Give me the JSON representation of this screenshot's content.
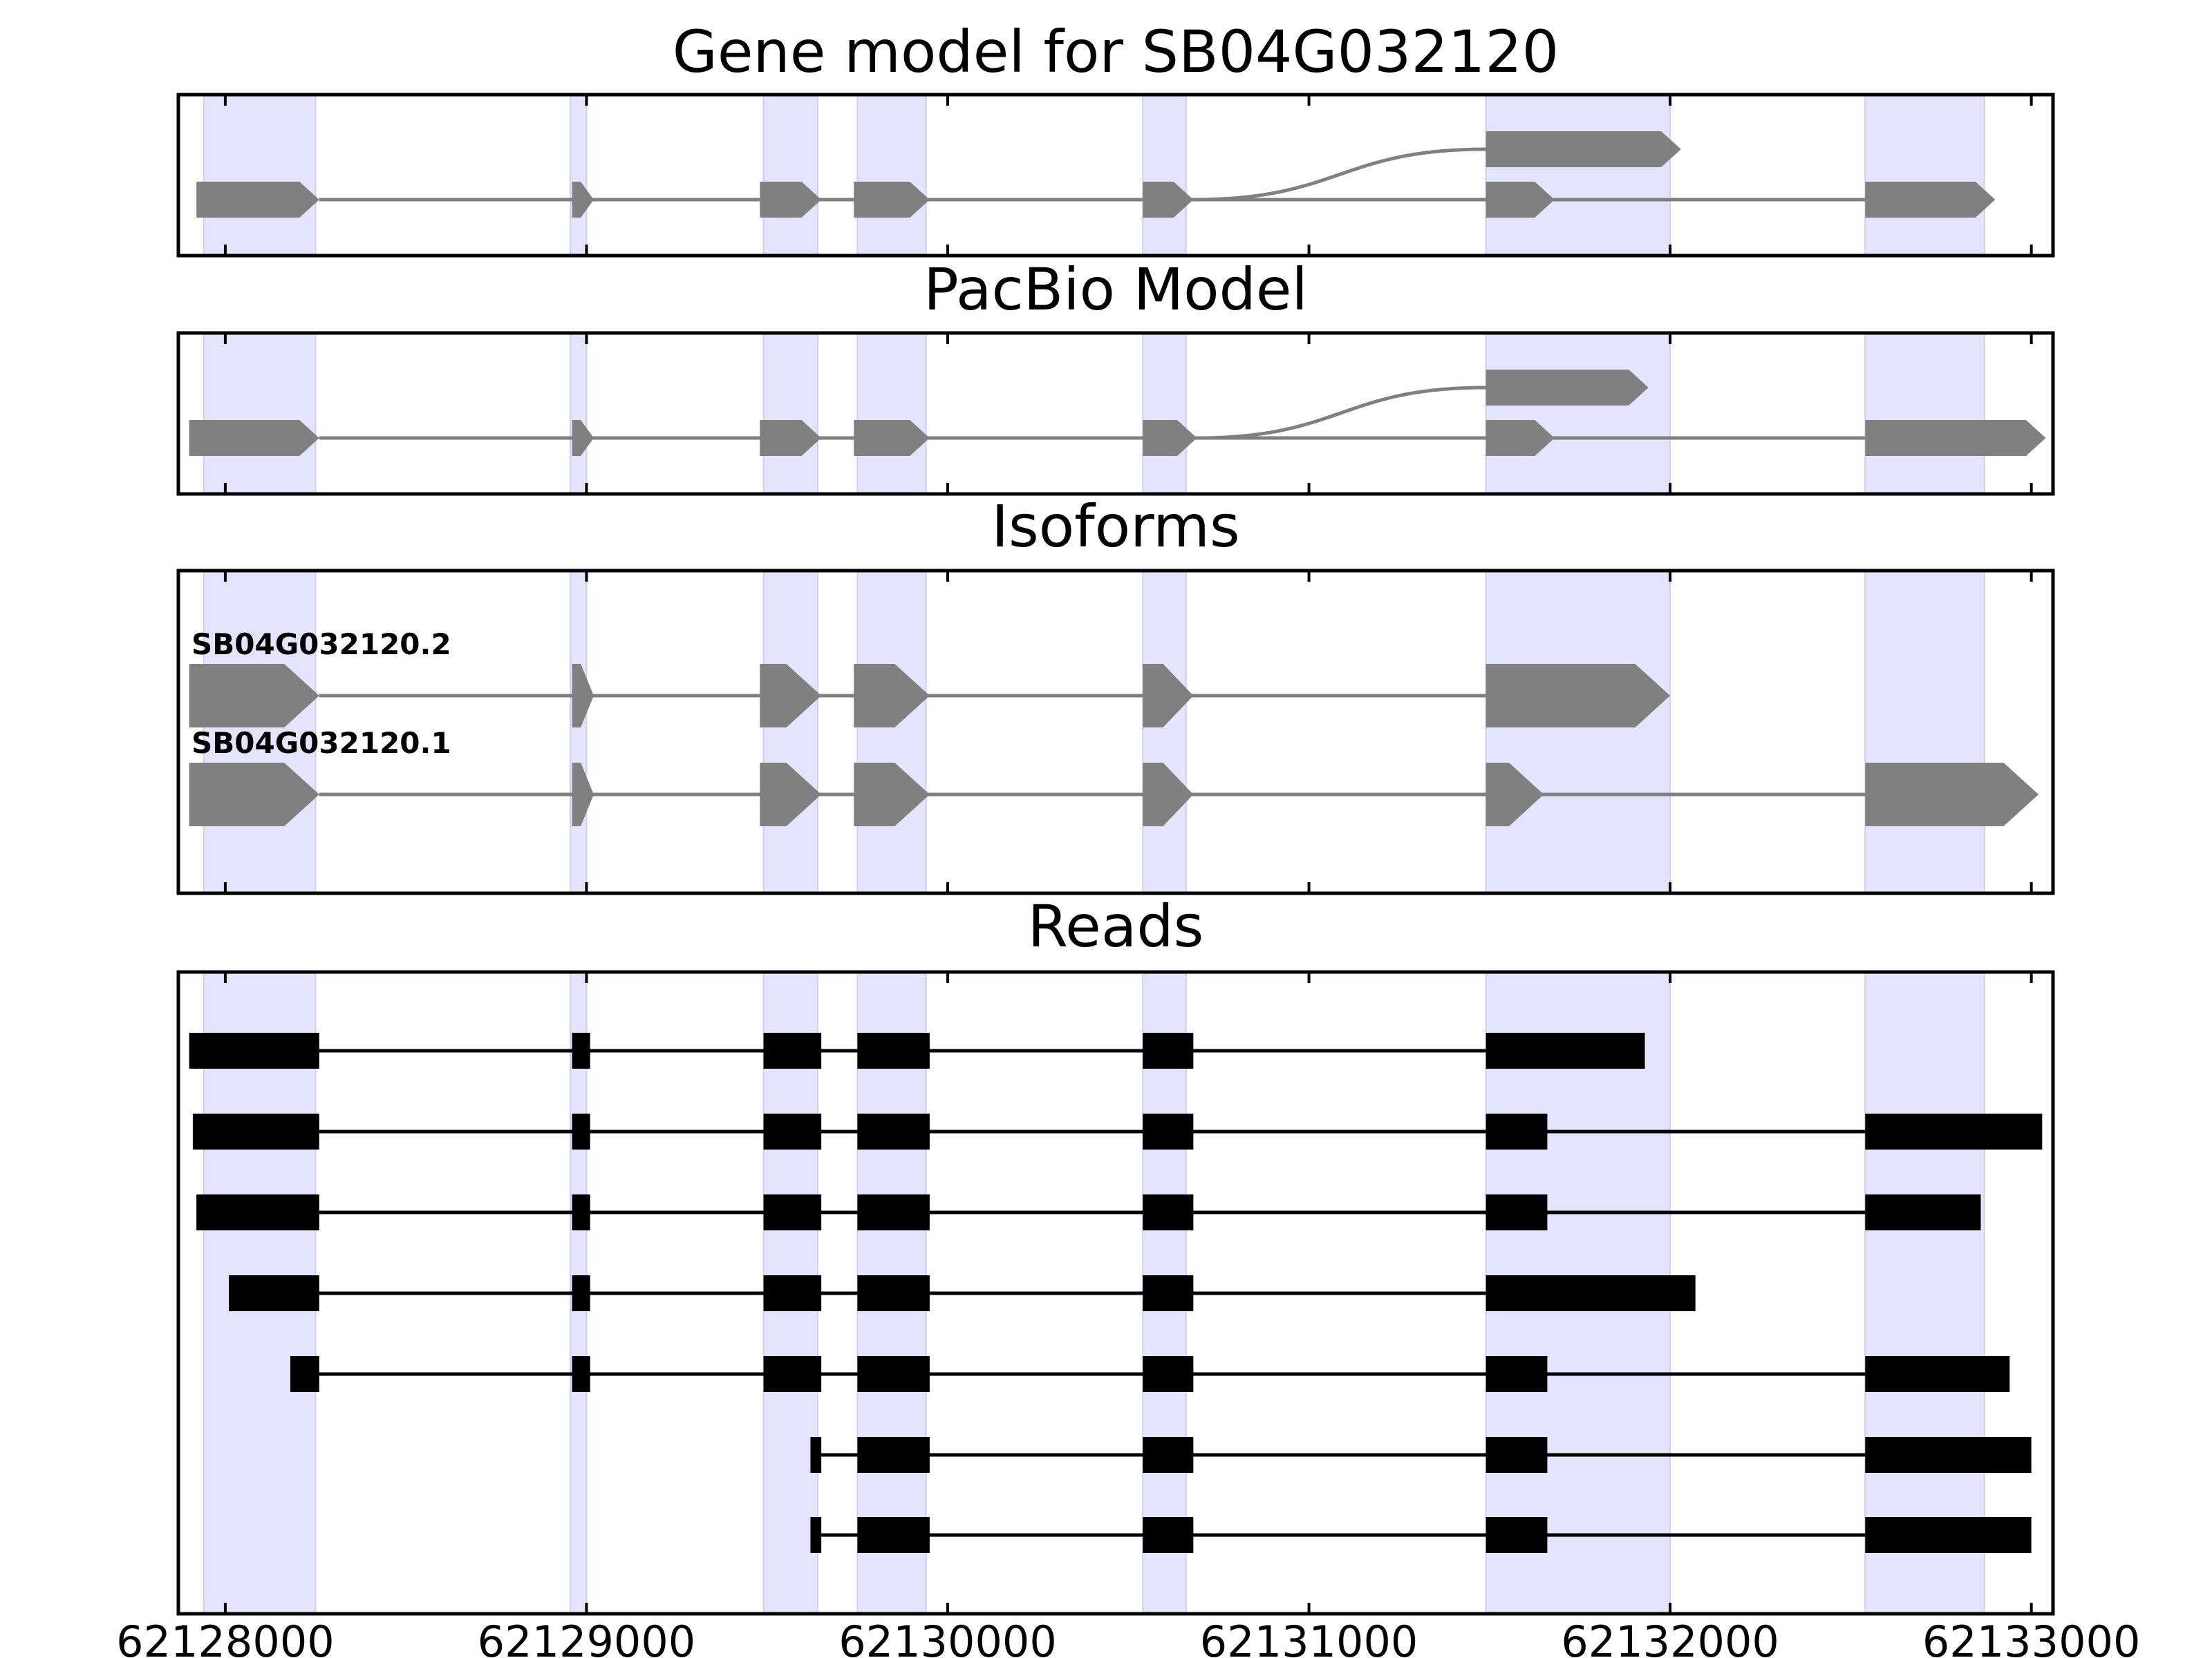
{
  "chart_data": {
    "type": "gene-structure",
    "x_axis": {
      "range": [
        62127870,
        62133060
      ],
      "ticks": [
        62128000,
        62129000,
        62130000,
        62131000,
        62132000,
        62133000
      ],
      "tick_labels": [
        "62128000",
        "62129000",
        "62130000",
        "62131000",
        "62132000",
        "62133000"
      ]
    },
    "highlight_regions": [
      [
        62127940,
        62128250
      ],
      [
        62128955,
        62129000
      ],
      [
        62129490,
        62129640
      ],
      [
        62129750,
        62129940
      ],
      [
        62130540,
        62130660
      ],
      [
        62131490,
        62132000
      ],
      [
        62132540,
        62132870
      ]
    ],
    "colors": {
      "highlight": "#e4e4fd",
      "model": "#808080",
      "reads": "#000000",
      "frame": "#000000"
    },
    "panels": [
      {
        "title": "Gene model for SB04G032120",
        "kind": "model",
        "main_exons": [
          [
            62127920,
            62128260
          ],
          [
            62128960,
            62129020
          ],
          [
            62129480,
            62129650
          ],
          [
            62129740,
            62129950
          ],
          [
            62130540,
            62130680
          ],
          [
            62131490,
            62131680
          ],
          [
            62132540,
            62132900
          ]
        ],
        "alt_exon": [
          62131490,
          62132030
        ],
        "alt_branch_start": 62130680
      },
      {
        "title": "PacBio Model",
        "kind": "model",
        "main_exons": [
          [
            62127900,
            62128260
          ],
          [
            62128960,
            62129020
          ],
          [
            62129480,
            62129650
          ],
          [
            62129740,
            62129950
          ],
          [
            62130540,
            62130690
          ],
          [
            62131490,
            62131680
          ],
          [
            62132540,
            62133040
          ]
        ],
        "alt_exon": [
          62131490,
          62131940
        ],
        "alt_branch_start": 62130690
      },
      {
        "title": "Isoforms",
        "kind": "isoforms",
        "isoforms": [
          {
            "name": "SB04G032120.2",
            "exons": [
              [
                62127900,
                62128260
              ],
              [
                62128960,
                62129020
              ],
              [
                62129480,
                62129650
              ],
              [
                62129740,
                62129950
              ],
              [
                62130540,
                62130680
              ],
              [
                62131490,
                62132000
              ]
            ]
          },
          {
            "name": "SB04G032120.1",
            "exons": [
              [
                62127900,
                62128260
              ],
              [
                62128960,
                62129020
              ],
              [
                62129480,
                62129650
              ],
              [
                62129740,
                62129950
              ],
              [
                62130540,
                62130680
              ],
              [
                62131490,
                62131650
              ],
              [
                62132540,
                62133020
              ]
            ]
          }
        ]
      },
      {
        "title": "Reads",
        "kind": "reads",
        "reads": [
          [
            [
              62127900,
              62128260
            ],
            [
              62128960,
              62129010
            ],
            [
              62129490,
              62129650
            ],
            [
              62129750,
              62129950
            ],
            [
              62130540,
              62130680
            ],
            [
              62131490,
              62131930
            ]
          ],
          [
            [
              62127910,
              62128260
            ],
            [
              62128960,
              62129010
            ],
            [
              62129490,
              62129650
            ],
            [
              62129750,
              62129950
            ],
            [
              62130540,
              62130680
            ],
            [
              62131490,
              62131660
            ],
            [
              62132540,
              62133030
            ]
          ],
          [
            [
              62127920,
              62128260
            ],
            [
              62128960,
              62129010
            ],
            [
              62129490,
              62129650
            ],
            [
              62129750,
              62129950
            ],
            [
              62130540,
              62130680
            ],
            [
              62131490,
              62131660
            ],
            [
              62132540,
              62132860
            ]
          ],
          [
            [
              62128010,
              62128260
            ],
            [
              62128960,
              62129010
            ],
            [
              62129490,
              62129650
            ],
            [
              62129750,
              62129950
            ],
            [
              62130540,
              62130680
            ],
            [
              62131490,
              62132070
            ]
          ],
          [
            [
              62128180,
              62128260
            ],
            [
              62128960,
              62129010
            ],
            [
              62129490,
              62129650
            ],
            [
              62129750,
              62129950
            ],
            [
              62130540,
              62130680
            ],
            [
              62131490,
              62131660
            ],
            [
              62132540,
              62132940
            ]
          ],
          [
            [
              62129620,
              62129650
            ],
            [
              62129750,
              62129950
            ],
            [
              62130540,
              62130680
            ],
            [
              62131490,
              62131660
            ],
            [
              62132540,
              62133000
            ]
          ],
          [
            [
              62129620,
              62129650
            ],
            [
              62129750,
              62129950
            ],
            [
              62130540,
              62130680
            ],
            [
              62131490,
              62131660
            ],
            [
              62132540,
              62133000
            ]
          ]
        ]
      }
    ]
  }
}
